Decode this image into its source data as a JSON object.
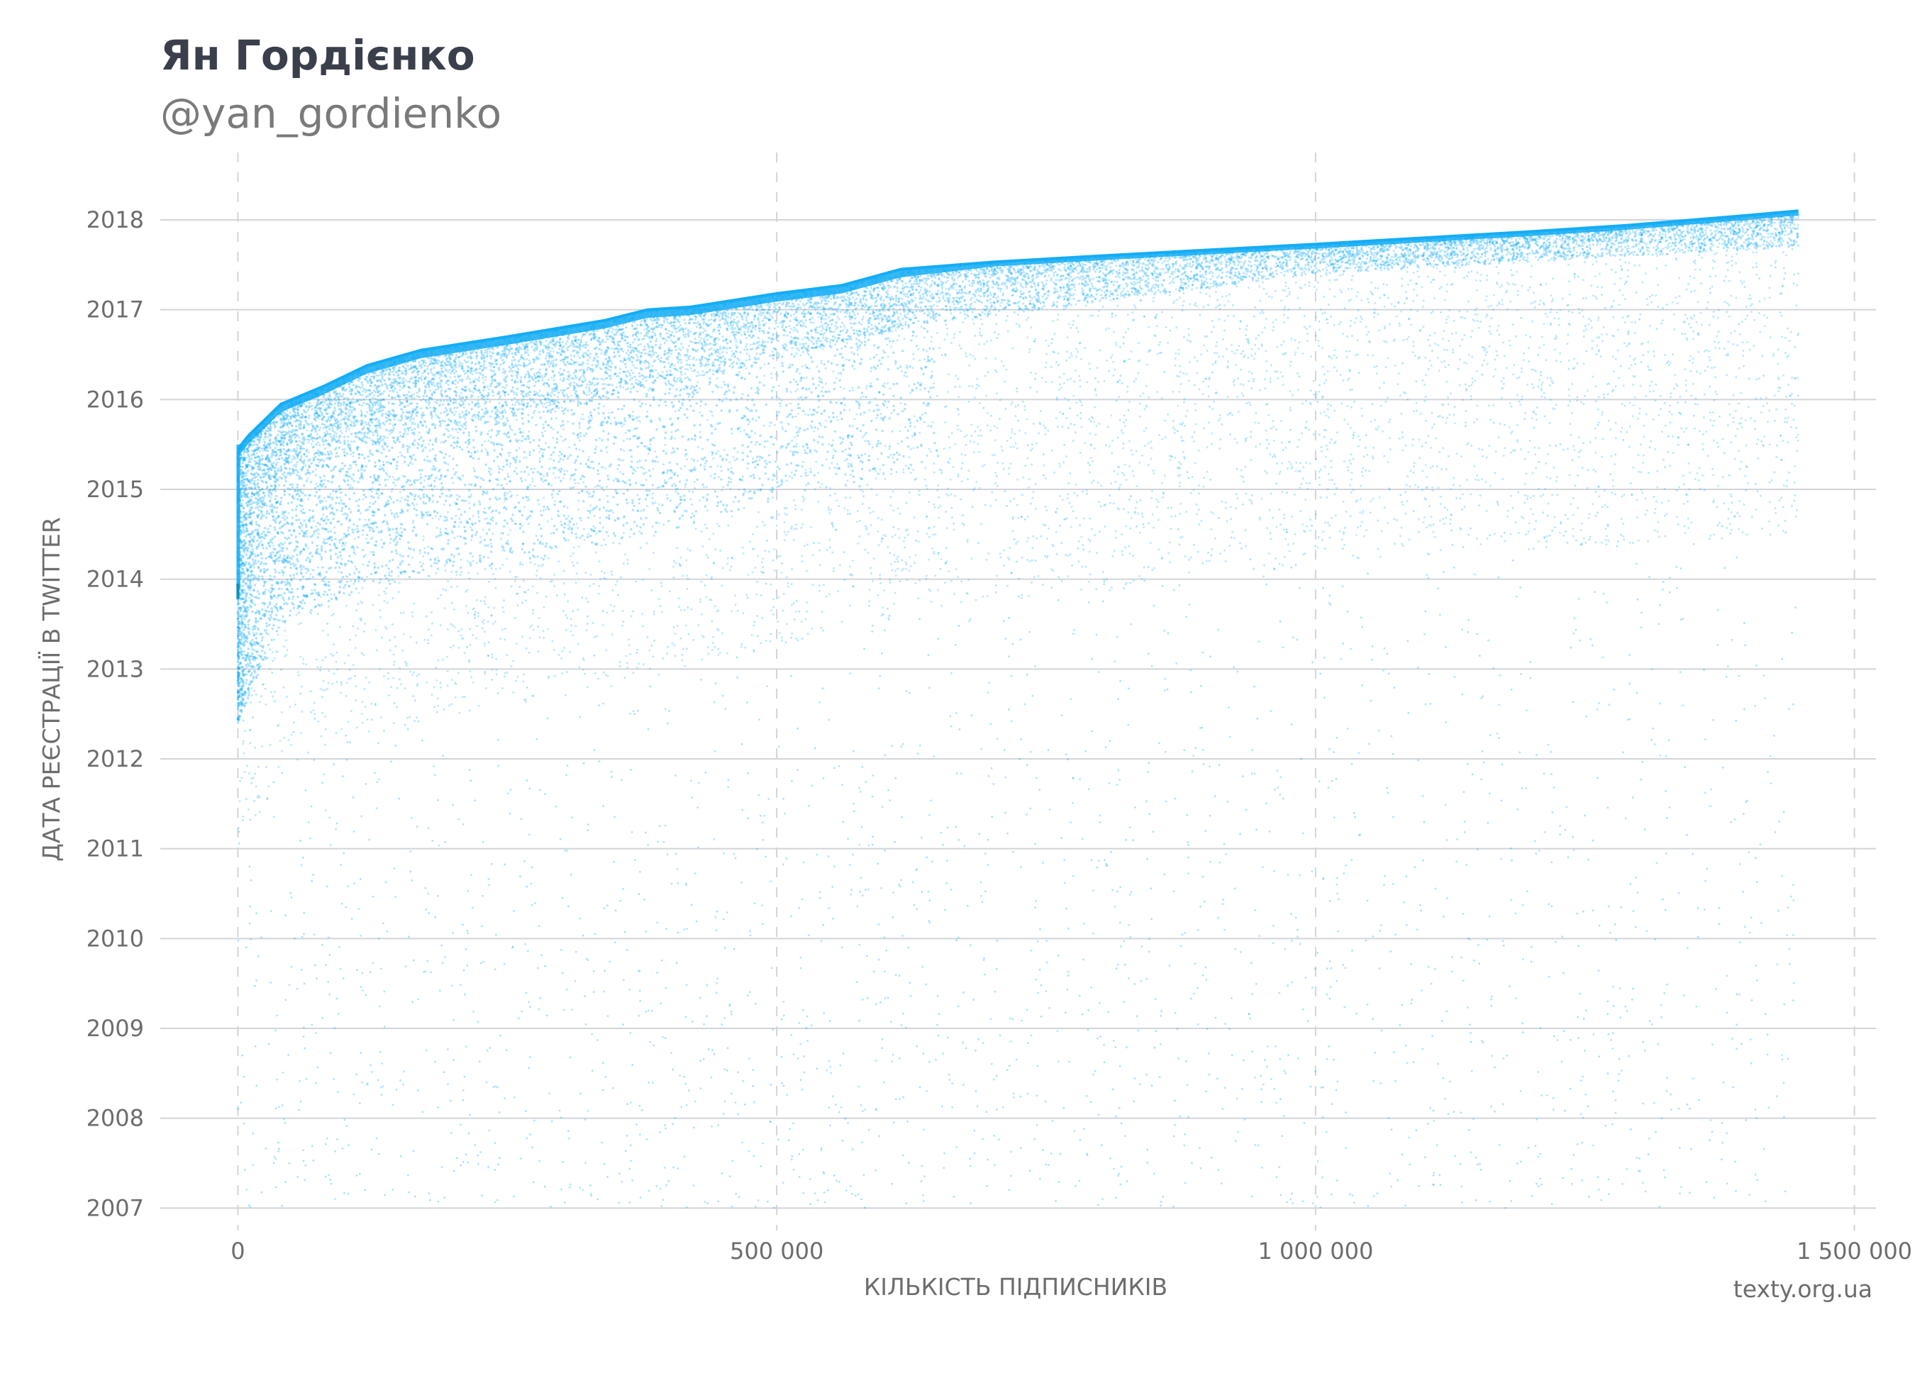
{
  "header": {
    "title": "Ян Гордієнко",
    "subtitle": "@yan_gordienko"
  },
  "footer": {
    "credit": "texty.org.ua"
  },
  "chart_data": {
    "type": "scatter",
    "xlabel": "КІЛЬКІСТЬ ПІДПИСНИКІВ",
    "ylabel": "ДАТА РЕЄСТРАЦІЇ В TWITTER",
    "xlim": [
      -72000,
      1520000
    ],
    "ylim": [
      2006.75,
      2018.75
    ],
    "x_ticks": [
      {
        "value": 0,
        "label": "0"
      },
      {
        "value": 500000,
        "label": "500 000"
      },
      {
        "value": 1000000,
        "label": "1 000 000"
      },
      {
        "value": 1500000,
        "label": "1 500 000"
      }
    ],
    "y_ticks": [
      {
        "value": 2007,
        "label": "2007"
      },
      {
        "value": 2008,
        "label": "2008"
      },
      {
        "value": 2009,
        "label": "2009"
      },
      {
        "value": 2010,
        "label": "2010"
      },
      {
        "value": 2011,
        "label": "2011"
      },
      {
        "value": 2012,
        "label": "2012"
      },
      {
        "value": 2013,
        "label": "2013"
      },
      {
        "value": 2014,
        "label": "2014"
      },
      {
        "value": 2015,
        "label": "2015"
      },
      {
        "value": 2016,
        "label": "2016"
      },
      {
        "value": 2017,
        "label": "2017"
      },
      {
        "value": 2018,
        "label": "2018"
      }
    ],
    "grid": {
      "horizontal": "solid",
      "vertical": "dashed"
    },
    "colors": {
      "points": "#14adf5",
      "grid": "#d2d4d8",
      "text": "#6d6d6d"
    },
    "point_count": 1448000,
    "upper_envelope": [
      {
        "x": 0,
        "y": 2015.45
      },
      {
        "x": 10000,
        "y": 2015.6
      },
      {
        "x": 40000,
        "y": 2015.95
      },
      {
        "x": 80000,
        "y": 2016.15
      },
      {
        "x": 120000,
        "y": 2016.38
      },
      {
        "x": 170000,
        "y": 2016.55
      },
      {
        "x": 250000,
        "y": 2016.7
      },
      {
        "x": 340000,
        "y": 2016.88
      },
      {
        "x": 380000,
        "y": 2017.0
      },
      {
        "x": 420000,
        "y": 2017.03
      },
      {
        "x": 500000,
        "y": 2017.18
      },
      {
        "x": 560000,
        "y": 2017.27
      },
      {
        "x": 615000,
        "y": 2017.45
      },
      {
        "x": 700000,
        "y": 2017.53
      },
      {
        "x": 800000,
        "y": 2017.6
      },
      {
        "x": 1000000,
        "y": 2017.73
      },
      {
        "x": 1200000,
        "y": 2017.87
      },
      {
        "x": 1290000,
        "y": 2017.94
      },
      {
        "x": 1400000,
        "y": 2018.05
      },
      {
        "x": 1448000,
        "y": 2018.1
      }
    ],
    "dense_band_floor": [
      {
        "x": 0,
        "y": 2014.0
      },
      {
        "x": 40000,
        "y": 2015.1
      },
      {
        "x": 120000,
        "y": 2015.5
      },
      {
        "x": 350000,
        "y": 2016.0
      },
      {
        "x": 615000,
        "y": 2016.8
      },
      {
        "x": 1000000,
        "y": 2017.4
      },
      {
        "x": 1448000,
        "y": 2017.7
      }
    ]
  }
}
